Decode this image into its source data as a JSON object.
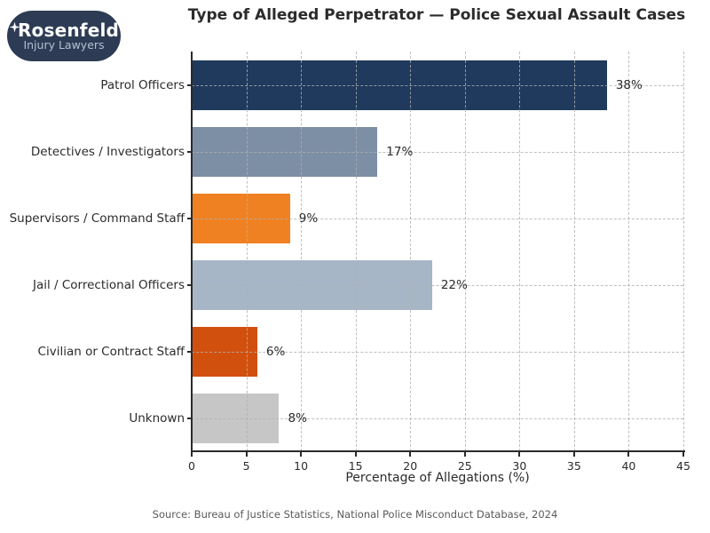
{
  "logo": {
    "brand": "Rosenfeld",
    "tagline": "Injury Lawyers",
    "bg_color": "#2d3c54",
    "tagline_color": "#b3c0d2"
  },
  "chart_data": {
    "type": "bar",
    "orientation": "horizontal",
    "title": "Type of Alleged Perpetrator — Police Sexual Assault Cases",
    "categories": [
      "Patrol Officers",
      "Detectives / Investigators",
      "Supervisors / Command Staff",
      "Jail / Correctional Officers",
      "Civilian or Contract Staff",
      "Unknown"
    ],
    "values": [
      38,
      17,
      9,
      22,
      6,
      8
    ],
    "value_labels": [
      "38%",
      "17%",
      "9%",
      "22%",
      "6%",
      "8%"
    ],
    "bar_colors": [
      "#1f3a5c",
      "#7d8fa5",
      "#ef8122",
      "#a7b6c6",
      "#d2500e",
      "#c6c6c6"
    ],
    "xlabel": "Percentage of Allegations (%)",
    "xlim": [
      0,
      45
    ],
    "xticks": [
      0,
      5,
      10,
      15,
      20,
      25,
      30,
      35,
      40,
      45
    ],
    "grid": "dashed",
    "legend": null,
    "source": "Source: Bureau of Justice Statistics, National Police Misconduct Database, 2024"
  }
}
